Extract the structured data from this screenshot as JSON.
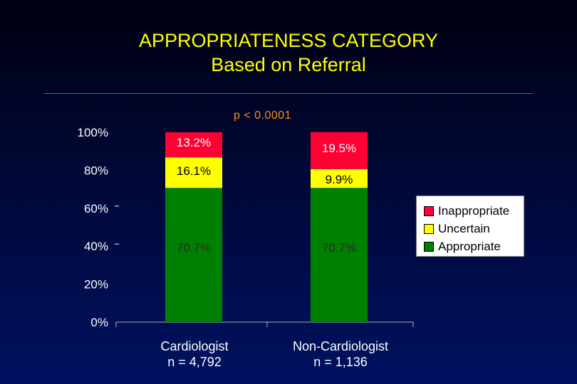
{
  "title_line1": "APPROPRIATENESS CATEGORY",
  "title_line2": "Based on Referral",
  "pvalue_text": "p < 0.0001",
  "colors": {
    "appropriate": "#008000",
    "uncertain": "#ffff00",
    "inappropriate": "#ff0033"
  },
  "legend": [
    {
      "label": "Inappropriate",
      "color": "#ff0033"
    },
    {
      "label": "Uncertain",
      "color": "#ffff00"
    },
    {
      "label": "Appropriate",
      "color": "#008000"
    }
  ],
  "groups": [
    {
      "name": "Cardiologist",
      "n_label": "n = 4,792"
    },
    {
      "name": "Non-Cardiologist",
      "n_label": "n = 1,136"
    }
  ],
  "chart_data": {
    "type": "bar",
    "stacked": true,
    "categories": [
      "Cardiologist",
      "Non-Cardiologist"
    ],
    "series": [
      {
        "name": "Appropriate",
        "values": [
          70.7,
          70.7
        ],
        "labels": [
          "70.7%",
          "70.7%"
        ],
        "color": "#008000"
      },
      {
        "name": "Uncertain",
        "values": [
          16.1,
          9.9
        ],
        "labels": [
          "16.1%",
          "9.9%"
        ],
        "color": "#ffff00"
      },
      {
        "name": "Inappropriate",
        "values": [
          13.2,
          19.5
        ],
        "labels": [
          "13.2%",
          "19.5%"
        ],
        "color": "#ff0033"
      }
    ],
    "yticks": [
      "0%",
      "20%",
      "40%",
      "60%",
      "80%",
      "100%"
    ],
    "ylim": [
      0,
      100
    ],
    "legend_position": "right"
  }
}
